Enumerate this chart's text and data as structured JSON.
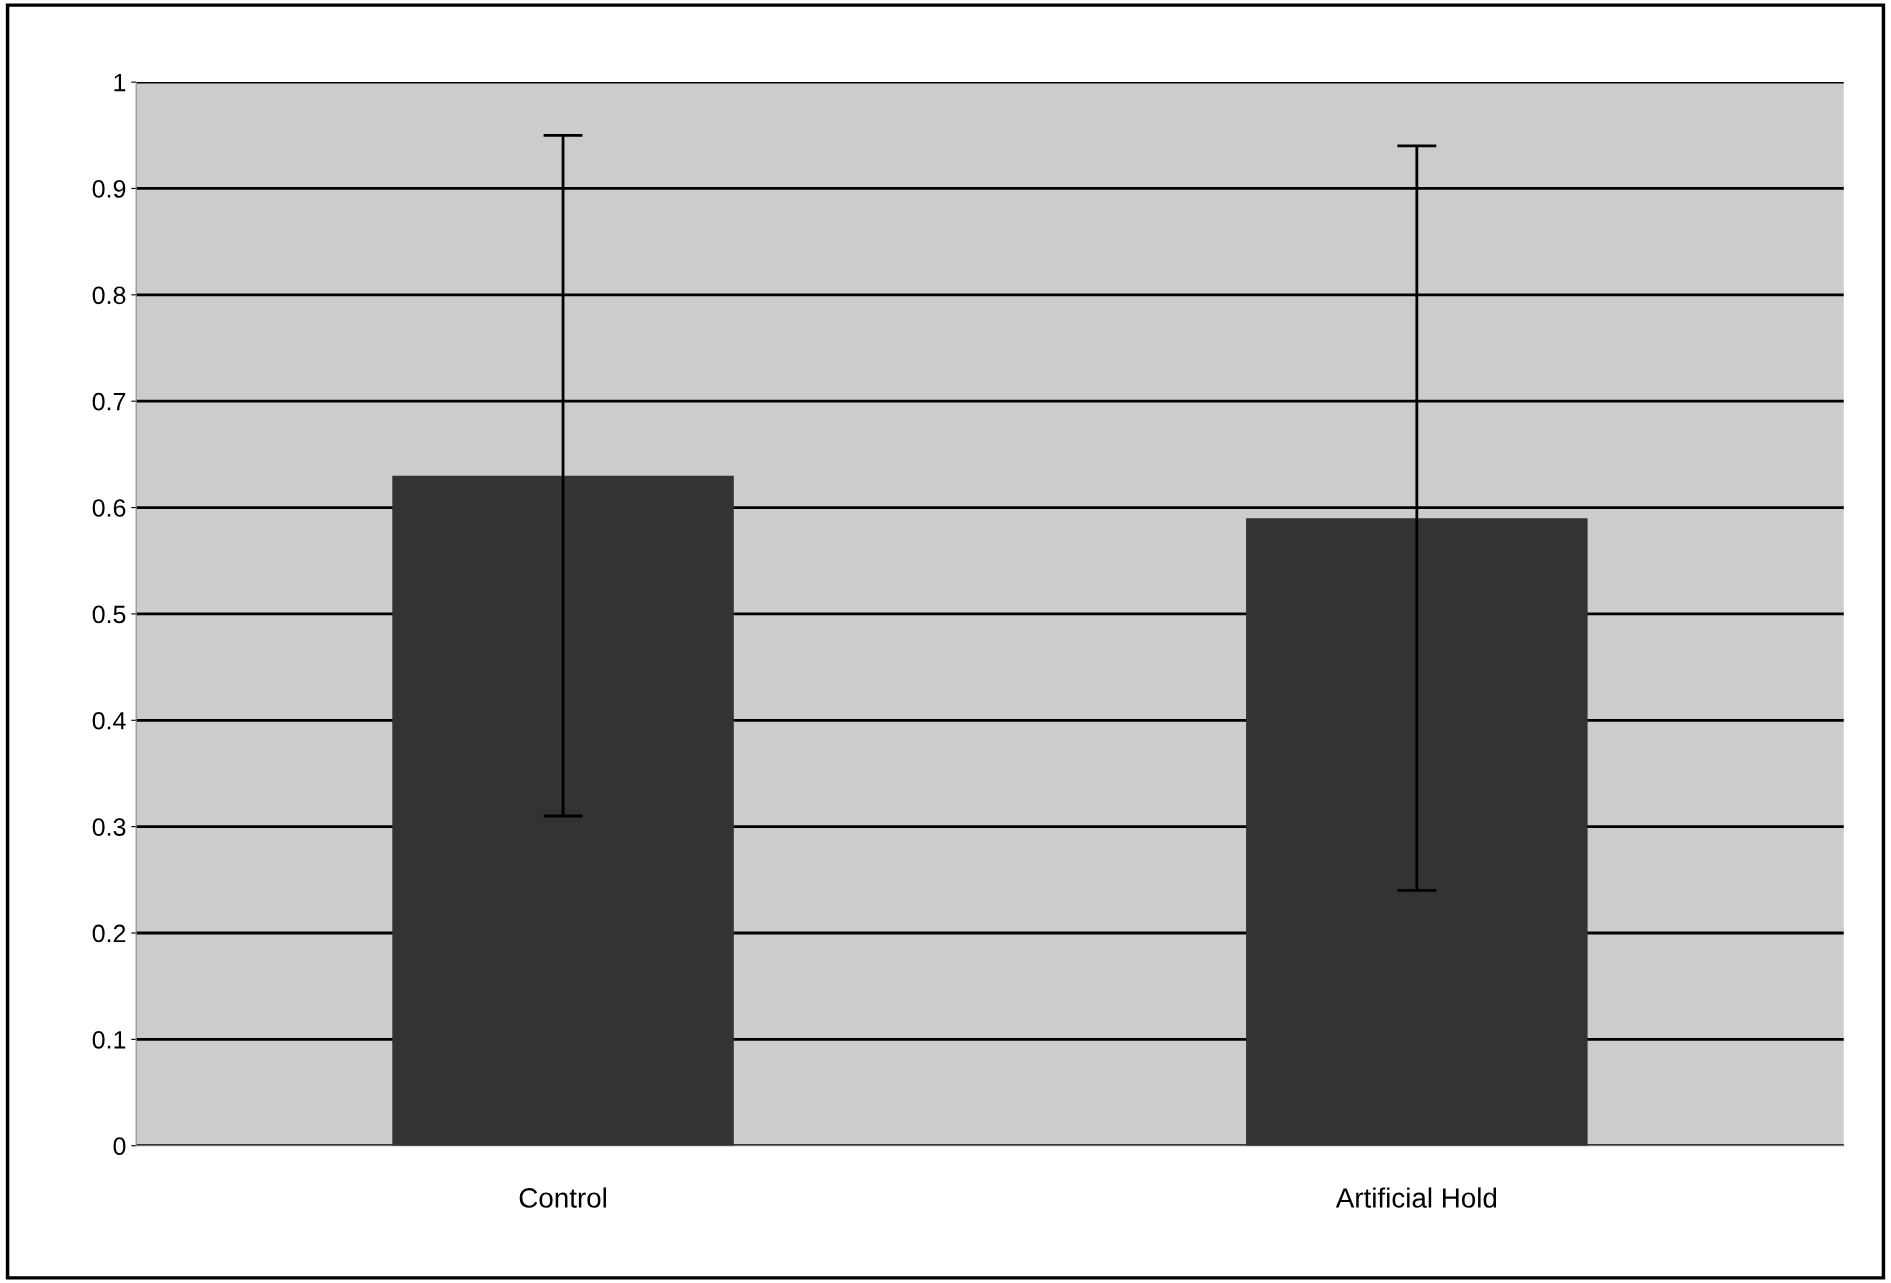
{
  "chart_data": {
    "type": "bar",
    "categories": [
      "Control",
      "Artificial Hold"
    ],
    "values": [
      0.63,
      0.59
    ],
    "color": "#333333",
    "errors": [
      [
        0.31,
        0.95
      ],
      [
        0.24,
        0.94
      ]
    ],
    "ylim": [
      0,
      1
    ],
    "yticks": [
      0,
      0.1,
      0.2,
      0.3,
      0.4,
      0.5,
      0.6,
      0.7,
      0.8,
      0.9,
      1
    ],
    "grid": "y",
    "legend": false
  }
}
